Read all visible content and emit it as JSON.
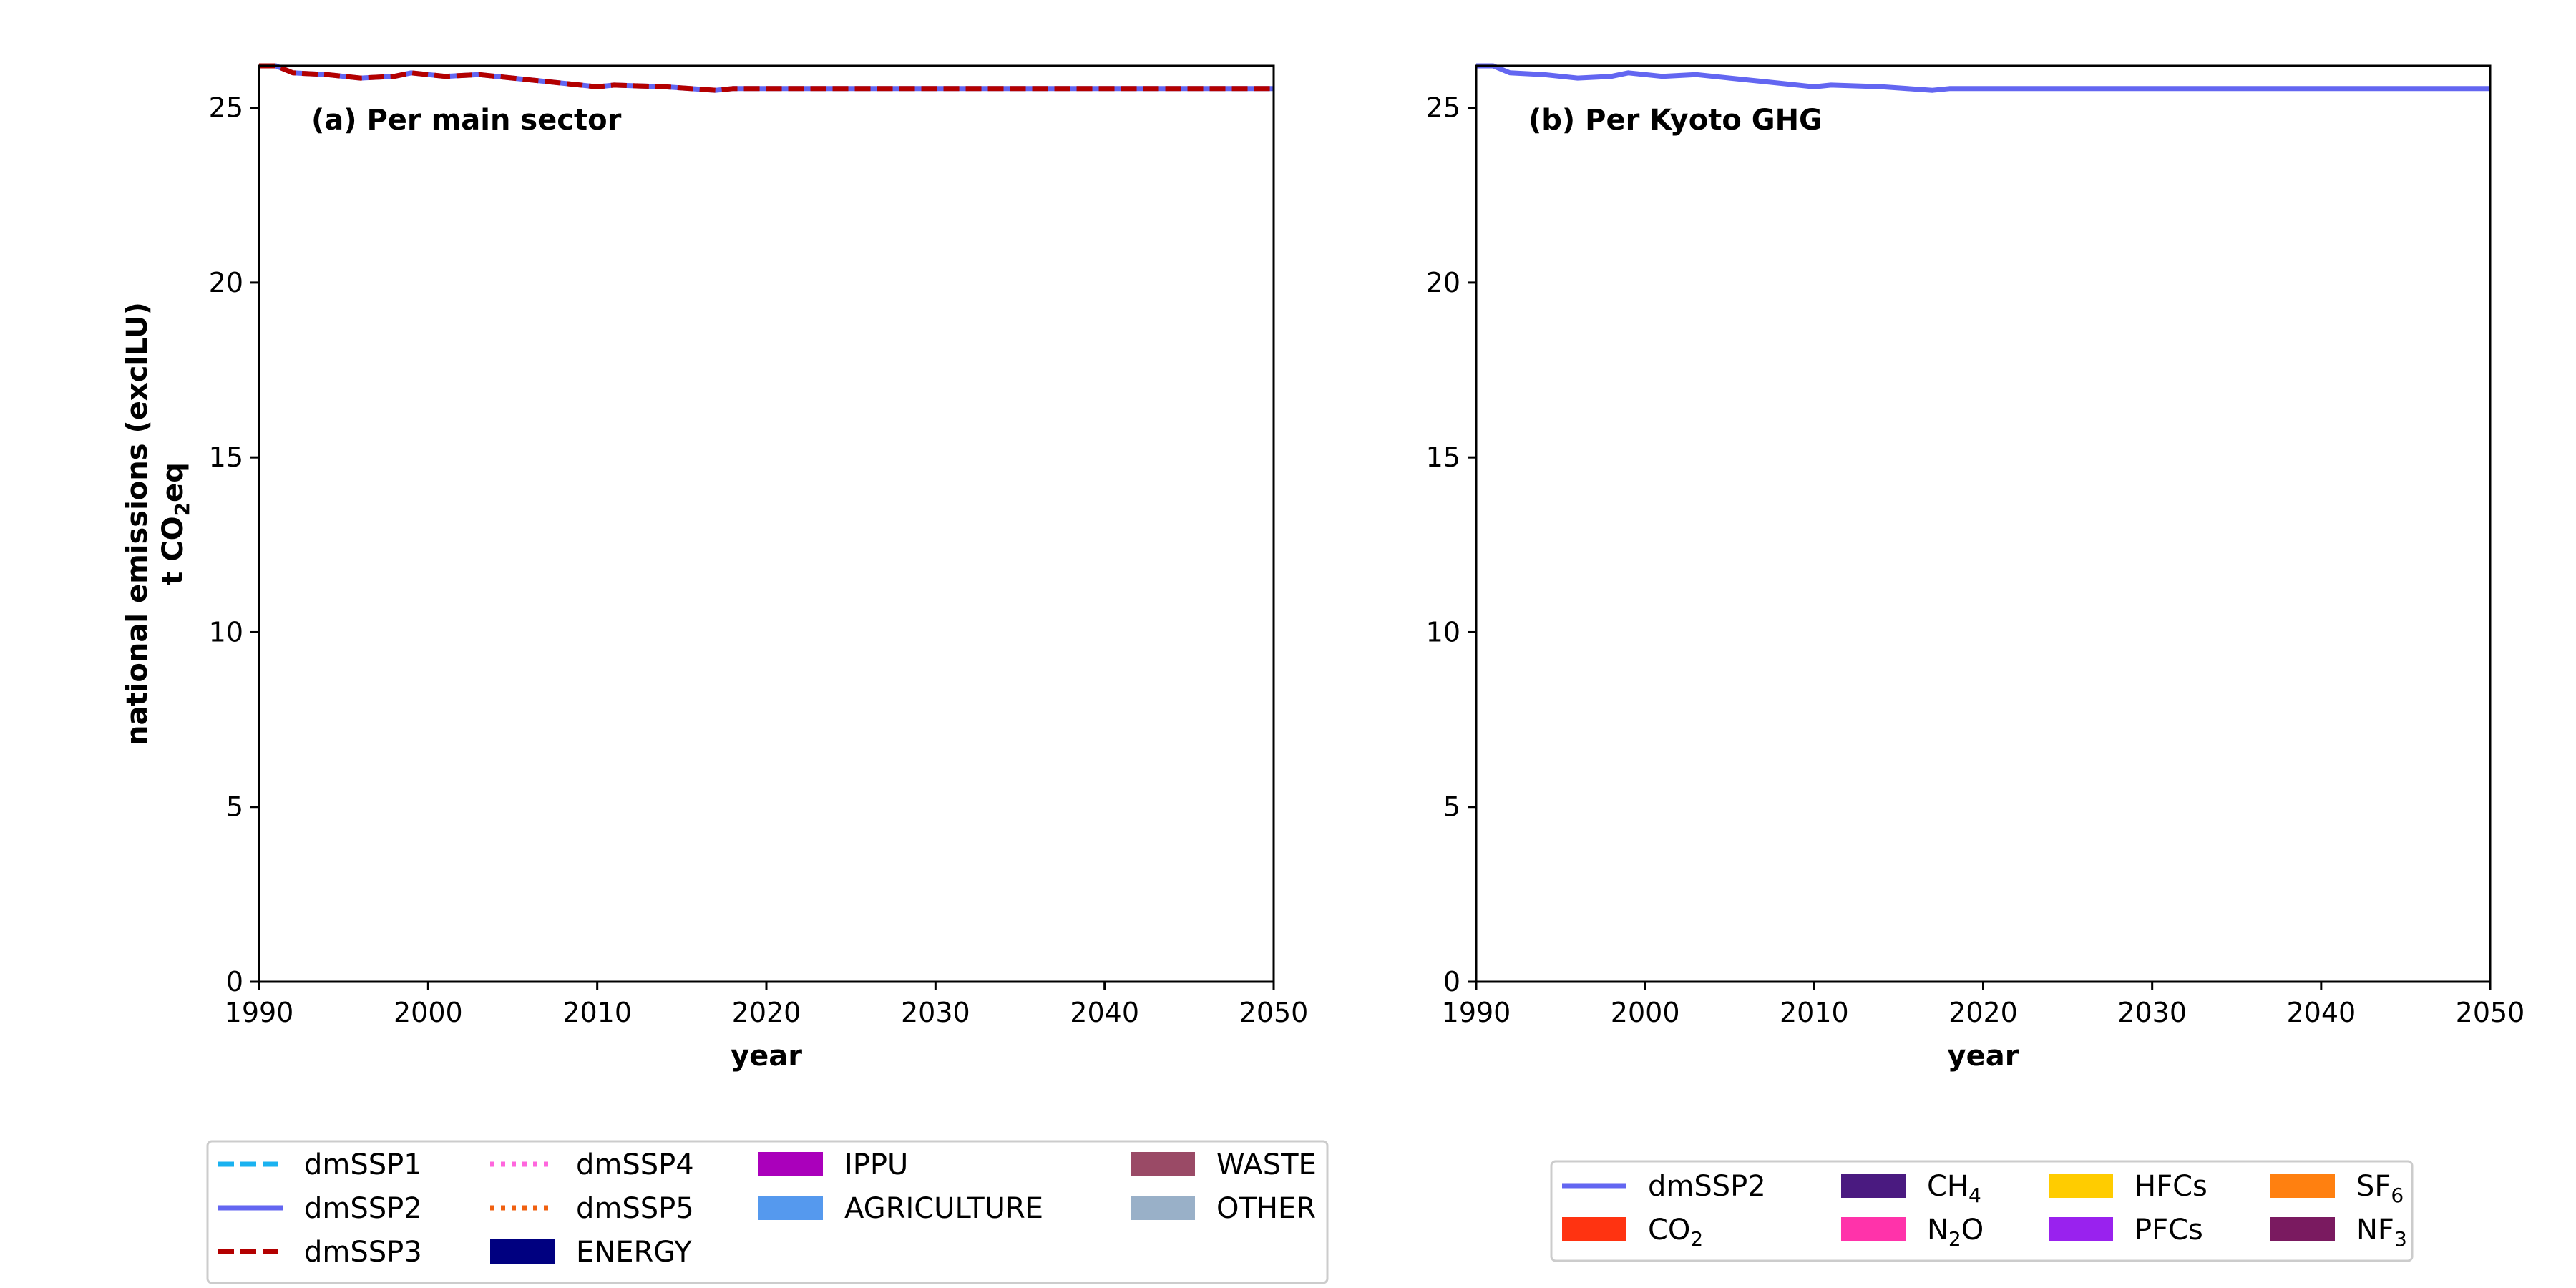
{
  "chart_data": [
    {
      "type": "line",
      "panel_title": "(a) Per main sector",
      "ylabel_line1": "national emissions (exclLU)",
      "ylabel_line2_pre": "t CO",
      "ylabel_line2_sub": "2",
      "ylabel_line2_post": "eq",
      "xlabel": "year",
      "xlim": [
        1990,
        2050
      ],
      "ylim": [
        0,
        26.2
      ],
      "xticks": [
        1990,
        2000,
        2010,
        2020,
        2030,
        2040,
        2050
      ],
      "yticks": [
        0,
        5,
        10,
        15,
        20,
        25
      ],
      "x": [
        1990,
        1991,
        1992,
        1994,
        1996,
        1998,
        1999,
        2001,
        2003,
        2005,
        2008,
        2010,
        2011,
        2014,
        2017,
        2018,
        2020,
        2030,
        2040,
        2050
      ],
      "series": [
        {
          "name": "dmSSP2",
          "color": "#6366f1",
          "style": "solid",
          "values": [
            26.2,
            26.2,
            26.0,
            25.95,
            25.85,
            25.9,
            26.0,
            25.9,
            25.95,
            25.85,
            25.7,
            25.6,
            25.65,
            25.6,
            25.5,
            25.55,
            25.55,
            25.55,
            25.55,
            25.55
          ]
        },
        {
          "name": "dmSSP3",
          "color": "#b30000",
          "style": "dashed",
          "values": [
            26.2,
            26.2,
            26.0,
            25.95,
            25.85,
            25.9,
            26.0,
            25.9,
            25.95,
            25.85,
            25.7,
            25.6,
            25.65,
            25.6,
            25.5,
            25.55,
            25.55,
            25.55,
            25.55,
            25.55
          ]
        }
      ],
      "legend": {
        "columns": [
          [
            {
              "kind": "line",
              "label": "dmSSP1",
              "color": "#1ab2f0",
              "style": "dashed"
            },
            {
              "kind": "line",
              "label": "dmSSP2",
              "color": "#6366f1",
              "style": "solid"
            },
            {
              "kind": "line",
              "label": "dmSSP3",
              "color": "#b30000",
              "style": "dashed"
            }
          ],
          [
            {
              "kind": "line",
              "label": "dmSSP4",
              "color": "#ff66dd",
              "style": "dotted"
            },
            {
              "kind": "line",
              "label": "dmSSP5",
              "color": "#f06010",
              "style": "dotted"
            },
            {
              "kind": "patch",
              "label": "ENERGY",
              "color": "#000080"
            }
          ],
          [
            {
              "kind": "patch",
              "label": "IPPU",
              "color": "#aa00bb"
            },
            {
              "kind": "patch",
              "label": "AGRICULTURE",
              "color": "#5599ee"
            }
          ],
          [
            {
              "kind": "patch",
              "label": "WASTE",
              "color": "#9a4a66"
            },
            {
              "kind": "patch",
              "label": "OTHER",
              "color": "#99b0c8"
            }
          ]
        ]
      }
    },
    {
      "type": "line",
      "panel_title": "(b) Per Kyoto GHG",
      "xlabel": "year",
      "xlim": [
        1990,
        2050
      ],
      "ylim": [
        0,
        26.2
      ],
      "xticks": [
        1990,
        2000,
        2010,
        2020,
        2030,
        2040,
        2050
      ],
      "yticks": [
        0,
        5,
        10,
        15,
        20,
        25
      ],
      "x": [
        1990,
        1991,
        1992,
        1994,
        1996,
        1998,
        1999,
        2001,
        2003,
        2005,
        2008,
        2010,
        2011,
        2014,
        2017,
        2018,
        2020,
        2030,
        2040,
        2050
      ],
      "series": [
        {
          "name": "dmSSP2",
          "color": "#6366f1",
          "style": "solid",
          "values": [
            26.2,
            26.2,
            26.0,
            25.95,
            25.85,
            25.9,
            26.0,
            25.9,
            25.95,
            25.85,
            25.7,
            25.6,
            25.65,
            25.6,
            25.5,
            25.55,
            25.55,
            25.55,
            25.55,
            25.55
          ]
        }
      ],
      "legend": {
        "columns": [
          [
            {
              "kind": "line",
              "label": "dmSSP2",
              "color": "#6366f1",
              "style": "solid"
            },
            {
              "kind": "patch",
              "label": "CO",
              "sub": "2",
              "color": "#ff3311"
            }
          ],
          [
            {
              "kind": "patch",
              "label": "CH",
              "sub": "4",
              "color": "#4a1a80"
            },
            {
              "kind": "patch",
              "label": "N",
              "sub": "2",
              "post": "O",
              "color": "#ff33aa"
            }
          ],
          [
            {
              "kind": "patch",
              "label": "HFCs",
              "color": "#ffcc00"
            },
            {
              "kind": "patch",
              "label": "PFCs",
              "color": "#9922ee"
            }
          ],
          [
            {
              "kind": "patch",
              "label": "SF",
              "sub": "6",
              "color": "#ff8010"
            },
            {
              "kind": "patch",
              "label": "NF",
              "sub": "3",
              "color": "#7a1a60"
            }
          ]
        ]
      }
    }
  ]
}
